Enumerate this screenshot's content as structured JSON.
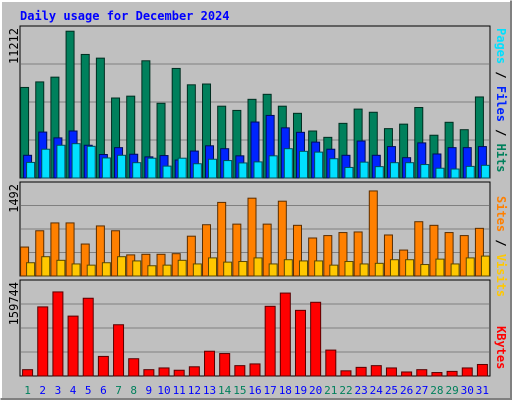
{
  "chart_data": [
    {
      "type": "bar",
      "title": "Daily usage for December 2024",
      "ymax_label": "11212",
      "ylim": [
        0,
        11212
      ],
      "ylabel_parts": [
        "Pages",
        "Files",
        "Hits"
      ],
      "ylabel_sep": " / ",
      "categories": [
        "1",
        "2",
        "3",
        "4",
        "5",
        "6",
        "7",
        "8",
        "9",
        "10",
        "11",
        "12",
        "13",
        "14",
        "15",
        "16",
        "17",
        "18",
        "19",
        "20",
        "21",
        "22",
        "23",
        "24",
        "25",
        "26",
        "27",
        "28",
        "29",
        "30",
        "31"
      ],
      "series": [
        {
          "name": "Hits",
          "color": "#00805c",
          "values": [
            6860,
            7280,
            7640,
            11120,
            9360,
            9080,
            6060,
            6200,
            8880,
            5660,
            8300,
            7060,
            7120,
            5440,
            5120,
            5960,
            6340,
            5440,
            4900,
            3560,
            3080,
            4140,
            5220,
            4980,
            3740,
            4080,
            5340,
            3240,
            4220,
            3660,
            6140
          ]
        },
        {
          "name": "Files",
          "color": "#0024ff",
          "values": [
            1720,
            3480,
            3040,
            3560,
            2480,
            1780,
            2300,
            1800,
            1600,
            1700,
            1360,
            2040,
            2440,
            2220,
            1680,
            4240,
            4740,
            3800,
            3460,
            2720,
            2180,
            1720,
            2800,
            1720,
            2380,
            1540,
            2660,
            1820,
            2300,
            2300,
            2380
          ]
        },
        {
          "name": "Pages",
          "color": "#00e0ff",
          "values": [
            1180,
            2180,
            2480,
            2600,
            2400,
            1520,
            1720,
            1160,
            1500,
            900,
            1500,
            1080,
            1420,
            1320,
            1140,
            1220,
            1680,
            2220,
            2020,
            1960,
            1460,
            800,
            1200,
            860,
            1160,
            1160,
            1020,
            740,
            680,
            880,
            960
          ]
        }
      ]
    },
    {
      "type": "bar",
      "ymax_label": "1492",
      "ylim": [
        0,
        1492
      ],
      "ylabel_parts": [
        "Sites",
        "Visits"
      ],
      "ylabel_sep": " / ",
      "categories": [
        "1",
        "2",
        "3",
        "4",
        "5",
        "6",
        "7",
        "8",
        "9",
        "10",
        "11",
        "12",
        "13",
        "14",
        "15",
        "16",
        "17",
        "18",
        "19",
        "20",
        "21",
        "22",
        "23",
        "24",
        "25",
        "26",
        "27",
        "28",
        "29",
        "30",
        "31"
      ],
      "series": [
        {
          "name": "Visits",
          "color": "#ff8000",
          "values": [
            480,
            750,
            880,
            880,
            530,
            830,
            750,
            350,
            360,
            360,
            370,
            660,
            850,
            1220,
            860,
            1290,
            860,
            1240,
            840,
            630,
            670,
            720,
            730,
            1410,
            680,
            430,
            900,
            840,
            720,
            670,
            790
          ]
        },
        {
          "name": "Sites",
          "color": "#ffc800",
          "values": [
            220,
            320,
            260,
            200,
            180,
            220,
            320,
            250,
            170,
            180,
            260,
            200,
            300,
            230,
            240,
            300,
            200,
            270,
            250,
            250,
            180,
            240,
            200,
            210,
            270,
            270,
            190,
            280,
            200,
            300,
            330
          ]
        }
      ]
    },
    {
      "type": "bar",
      "ymax_label": "159744",
      "ylim": [
        0,
        159744
      ],
      "ylabel_parts": [
        "KBytes"
      ],
      "ylabel_sep": "",
      "categories": [
        "1",
        "2",
        "3",
        "4",
        "5",
        "6",
        "7",
        "8",
        "9",
        "10",
        "11",
        "12",
        "13",
        "14",
        "15",
        "16",
        "17",
        "18",
        "19",
        "20",
        "21",
        "22",
        "23",
        "24",
        "25",
        "26",
        "27",
        "28",
        "29",
        "30",
        "31"
      ],
      "series": [
        {
          "name": "KBytes",
          "color": "#ff0000",
          "values": [
            11000,
            120000,
            146000,
            104000,
            135000,
            34000,
            89000,
            30000,
            11000,
            14000,
            10000,
            16000,
            43000,
            39000,
            18000,
            21000,
            121000,
            144000,
            114000,
            128000,
            45000,
            9000,
            15000,
            18000,
            14000,
            7000,
            11000,
            6000,
            8000,
            14000,
            20000
          ]
        }
      ]
    }
  ],
  "colors": {
    "background": "#c0c0c0",
    "plot_background": "#c0c0c0",
    "gridline": "#808080",
    "title": "#0000ff",
    "weekend_label": "#00805c",
    "weekday_label": "#0000ff",
    "text": "#000000"
  },
  "weekend_days": [
    "1",
    "7",
    "8",
    "14",
    "15",
    "21",
    "22",
    "28",
    "29"
  ]
}
